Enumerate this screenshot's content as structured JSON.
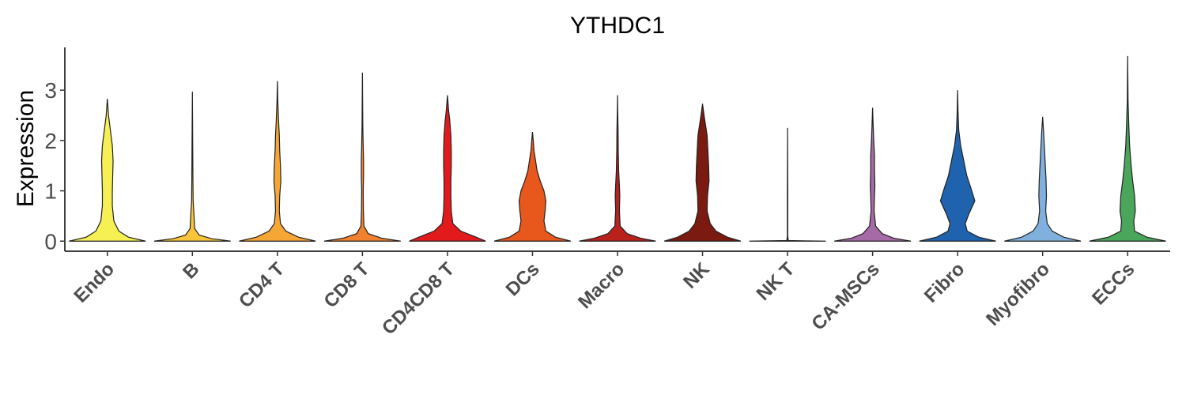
{
  "chart_data": {
    "type": "violin",
    "title": "YTHDC1",
    "xlabel": "",
    "ylabel": "Expression",
    "ylim": [
      -0.2,
      3.85
    ],
    "yticks": [
      0,
      1,
      2,
      3
    ],
    "grid": false,
    "legend": "none",
    "categories": [
      "Endo",
      "B",
      "CD4 T",
      "CD8 T",
      "CD4CD8 T",
      "DCs",
      "Macro",
      "NK",
      "NK T",
      "CA-MSCs",
      "Fibro",
      "Myofibro",
      "ECCs"
    ],
    "series": [
      {
        "category": "Endo",
        "color": "#F7F054",
        "max": 2.83,
        "profile": [
          [
            0,
            1.0
          ],
          [
            0.08,
            0.55
          ],
          [
            0.2,
            0.3
          ],
          [
            0.4,
            0.17
          ],
          [
            0.7,
            0.13
          ],
          [
            1.0,
            0.13
          ],
          [
            1.3,
            0.14
          ],
          [
            1.6,
            0.15
          ],
          [
            1.9,
            0.13
          ],
          [
            2.2,
            0.08
          ],
          [
            2.5,
            0.03
          ],
          [
            2.83,
            0.0
          ]
        ]
      },
      {
        "category": "B",
        "color": "#F9C43A",
        "max": 2.97,
        "profile": [
          [
            0,
            1.0
          ],
          [
            0.05,
            0.5
          ],
          [
            0.12,
            0.18
          ],
          [
            0.25,
            0.06
          ],
          [
            0.4,
            0.05
          ],
          [
            0.55,
            0.04
          ],
          [
            0.8,
            0.02
          ],
          [
            1.2,
            0.015
          ],
          [
            1.8,
            0.01
          ],
          [
            2.4,
            0.005
          ],
          [
            2.97,
            0.0
          ]
        ]
      },
      {
        "category": "CD4 T",
        "color": "#F6A635",
        "max": 3.18,
        "profile": [
          [
            0,
            1.0
          ],
          [
            0.08,
            0.55
          ],
          [
            0.2,
            0.22
          ],
          [
            0.35,
            0.08
          ],
          [
            0.6,
            0.05
          ],
          [
            0.9,
            0.06
          ],
          [
            1.2,
            0.09
          ],
          [
            1.5,
            0.08
          ],
          [
            1.8,
            0.06
          ],
          [
            2.1,
            0.05
          ],
          [
            2.4,
            0.03
          ],
          [
            2.8,
            0.01
          ],
          [
            3.18,
            0.0
          ]
        ]
      },
      {
        "category": "CD8 T",
        "color": "#EF812F",
        "max": 3.35,
        "profile": [
          [
            0,
            1.0
          ],
          [
            0.06,
            0.5
          ],
          [
            0.15,
            0.15
          ],
          [
            0.3,
            0.04
          ],
          [
            0.6,
            0.025
          ],
          [
            1.0,
            0.02
          ],
          [
            1.3,
            0.03
          ],
          [
            1.6,
            0.03
          ],
          [
            1.9,
            0.02
          ],
          [
            2.3,
            0.01
          ],
          [
            2.8,
            0.005
          ],
          [
            3.35,
            0.0
          ]
        ]
      },
      {
        "category": "CD4CD8 T",
        "color": "#E31A1C",
        "max": 2.9,
        "profile": [
          [
            0,
            1.0
          ],
          [
            0.08,
            0.75
          ],
          [
            0.2,
            0.35
          ],
          [
            0.35,
            0.14
          ],
          [
            0.6,
            0.1
          ],
          [
            0.9,
            0.09
          ],
          [
            1.2,
            0.09
          ],
          [
            1.5,
            0.1
          ],
          [
            1.8,
            0.1
          ],
          [
            2.1,
            0.09
          ],
          [
            2.4,
            0.06
          ],
          [
            2.6,
            0.03
          ],
          [
            2.9,
            0.0
          ]
        ]
      },
      {
        "category": "DCs",
        "color": "#E8571C",
        "max": 2.17,
        "profile": [
          [
            0,
            1.0
          ],
          [
            0.08,
            0.6
          ],
          [
            0.2,
            0.35
          ],
          [
            0.4,
            0.3
          ],
          [
            0.6,
            0.33
          ],
          [
            0.8,
            0.35
          ],
          [
            1.0,
            0.3
          ],
          [
            1.2,
            0.2
          ],
          [
            1.4,
            0.12
          ],
          [
            1.6,
            0.08
          ],
          [
            1.8,
            0.04
          ],
          [
            2.0,
            0.02
          ],
          [
            2.17,
            0.0
          ]
        ]
      },
      {
        "category": "Macro",
        "color": "#B8211C",
        "max": 2.9,
        "profile": [
          [
            0,
            1.0
          ],
          [
            0.06,
            0.6
          ],
          [
            0.15,
            0.25
          ],
          [
            0.3,
            0.07
          ],
          [
            0.6,
            0.05
          ],
          [
            0.9,
            0.06
          ],
          [
            1.1,
            0.05
          ],
          [
            1.4,
            0.03
          ],
          [
            1.8,
            0.02
          ],
          [
            2.2,
            0.015
          ],
          [
            2.6,
            0.005
          ],
          [
            2.9,
            0.0
          ]
        ]
      },
      {
        "category": "NK",
        "color": "#7A1A10",
        "max": 2.73,
        "profile": [
          [
            0,
            1.0
          ],
          [
            0.08,
            0.65
          ],
          [
            0.2,
            0.35
          ],
          [
            0.35,
            0.2
          ],
          [
            0.6,
            0.12
          ],
          [
            0.9,
            0.13
          ],
          [
            1.2,
            0.17
          ],
          [
            1.5,
            0.16
          ],
          [
            1.8,
            0.14
          ],
          [
            2.1,
            0.12
          ],
          [
            2.3,
            0.08
          ],
          [
            2.5,
            0.04
          ],
          [
            2.73,
            0.0
          ]
        ]
      },
      {
        "category": "NK T",
        "color": "#8B1A12",
        "max": 2.25,
        "profile": [
          [
            0,
            1.0
          ],
          [
            0.012,
            0.02
          ],
          [
            0.1,
            0.005
          ],
          [
            1.0,
            0.005
          ],
          [
            2.25,
            0.0
          ]
        ]
      },
      {
        "category": "CA-MSCs",
        "color": "#A66BA6",
        "max": 2.65,
        "profile": [
          [
            0,
            1.0
          ],
          [
            0.06,
            0.55
          ],
          [
            0.15,
            0.25
          ],
          [
            0.3,
            0.08
          ],
          [
            0.6,
            0.04
          ],
          [
            0.9,
            0.05
          ],
          [
            1.1,
            0.06
          ],
          [
            1.4,
            0.05
          ],
          [
            1.7,
            0.05
          ],
          [
            2.0,
            0.03
          ],
          [
            2.3,
            0.015
          ],
          [
            2.65,
            0.0
          ]
        ]
      },
      {
        "category": "Fibro",
        "color": "#1F63AE",
        "max": 3.0,
        "profile": [
          [
            0,
            1.0
          ],
          [
            0.08,
            0.55
          ],
          [
            0.2,
            0.25
          ],
          [
            0.35,
            0.2
          ],
          [
            0.55,
            0.3
          ],
          [
            0.8,
            0.45
          ],
          [
            1.05,
            0.35
          ],
          [
            1.3,
            0.24
          ],
          [
            1.6,
            0.16
          ],
          [
            1.9,
            0.08
          ],
          [
            2.2,
            0.03
          ],
          [
            2.6,
            0.01
          ],
          [
            3.0,
            0.0
          ]
        ]
      },
      {
        "category": "Myofibro",
        "color": "#7FB0DE",
        "max": 2.47,
        "profile": [
          [
            0,
            1.0
          ],
          [
            0.08,
            0.55
          ],
          [
            0.2,
            0.25
          ],
          [
            0.35,
            0.12
          ],
          [
            0.6,
            0.08
          ],
          [
            0.9,
            0.1
          ],
          [
            1.2,
            0.09
          ],
          [
            1.5,
            0.07
          ],
          [
            1.8,
            0.05
          ],
          [
            2.1,
            0.03
          ],
          [
            2.47,
            0.0
          ]
        ]
      },
      {
        "category": "ECCs",
        "color": "#4AA65A",
        "max": 3.68,
        "profile": [
          [
            0,
            1.0
          ],
          [
            0.08,
            0.5
          ],
          [
            0.2,
            0.18
          ],
          [
            0.4,
            0.16
          ],
          [
            0.6,
            0.2
          ],
          [
            0.9,
            0.18
          ],
          [
            1.2,
            0.13
          ],
          [
            1.5,
            0.09
          ],
          [
            1.9,
            0.05
          ],
          [
            2.3,
            0.03
          ],
          [
            2.8,
            0.01
          ],
          [
            3.68,
            0.0
          ]
        ]
      }
    ]
  }
}
